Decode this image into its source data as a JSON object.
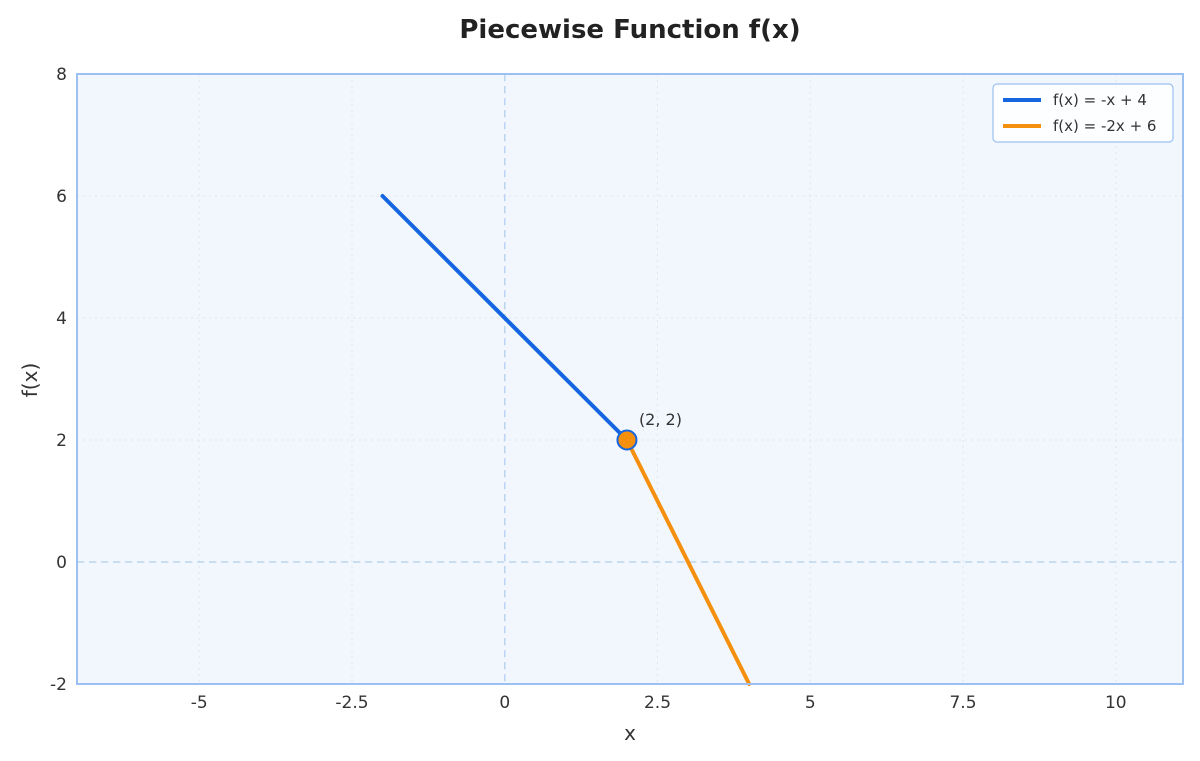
{
  "chart_data": {
    "type": "line",
    "title": "Piecewise Function f(x)",
    "xlabel": "x",
    "ylabel": "f(x)",
    "xlim": [
      -7,
      11.1
    ],
    "ylim": [
      -2,
      8
    ],
    "xticks": [
      -5,
      -2.5,
      0,
      2.5,
      5,
      7.5,
      10
    ],
    "xtick_labels": [
      "-5",
      "-2.5",
      "0",
      "2.5",
      "5",
      "7.5",
      "10"
    ],
    "yticks": [
      -2,
      0,
      2,
      4,
      6,
      8
    ],
    "ytick_labels": [
      "-2",
      "0",
      "2",
      "4",
      "6",
      "8"
    ],
    "grid": true,
    "legend_position": "top-right",
    "series": [
      {
        "name": "f(x) = -x + 4",
        "color": "#1565e0",
        "x": [
          -2,
          2
        ],
        "y": [
          6,
          2
        ]
      },
      {
        "name": "f(x) = -2x + 6",
        "color": "#f5900e",
        "x": [
          2,
          4
        ],
        "y": [
          2,
          -2
        ]
      }
    ],
    "points": [
      {
        "x": 2,
        "y": 2,
        "label": "(2, 2)",
        "fill": "#f5900e",
        "stroke": "#1565e0"
      }
    ],
    "reference_lines": [
      {
        "axis": "x",
        "value": 0
      },
      {
        "axis": "y",
        "value": 0
      }
    ]
  }
}
